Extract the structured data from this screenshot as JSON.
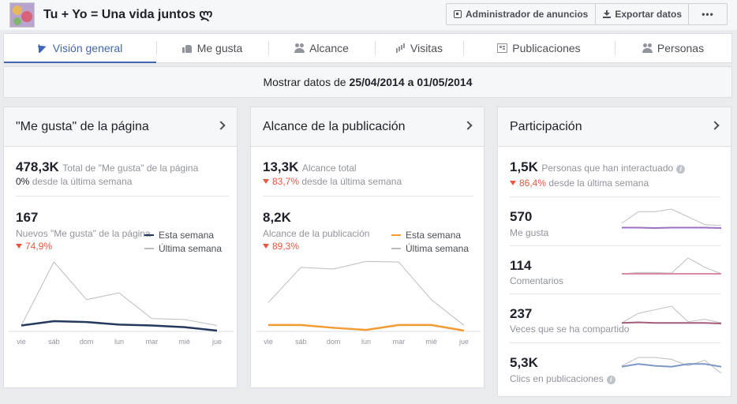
{
  "page": {
    "title": "Tu + Yo = Una vida juntos ლ"
  },
  "toolbar": {
    "ads_manager": "Administrador de anuncios",
    "export": "Exportar datos",
    "more": "•••"
  },
  "tabs": [
    {
      "label": "Visión general",
      "icon": "flag-icon"
    },
    {
      "label": "Me gusta",
      "icon": "thumbs-up-icon"
    },
    {
      "label": "Alcance",
      "icon": "people-icon"
    },
    {
      "label": "Visitas",
      "icon": "bar-chart-icon"
    },
    {
      "label": "Publicaciones",
      "icon": "posts-icon"
    },
    {
      "label": "Personas",
      "icon": "people-icon"
    }
  ],
  "daterange": {
    "prefix": "Mostrar datos de",
    "start": "25/04/2014",
    "connector": "a",
    "end": "01/05/2014"
  },
  "likes_card": {
    "title": "\"Me gusta\" de la página",
    "total": {
      "value": "478,3K",
      "label": "Total de \"Me gusta\" de la página",
      "change": "0%",
      "change_label": "desde la última semana"
    },
    "new": {
      "value": "167",
      "label": "Nuevos \"Me gusta\" de la página",
      "change": "74,9%"
    }
  },
  "reach_card": {
    "title": "Alcance de la publicación",
    "total": {
      "value": "13,3K",
      "label": "Alcance total",
      "change": "83,7%",
      "change_label": "desde la última semana"
    },
    "post": {
      "value": "8,2K",
      "label": "Alcance de la publicación",
      "change": "89,3%"
    }
  },
  "engagement_card": {
    "title": "Participación",
    "total": {
      "value": "1,5K",
      "label": "Personas que han interactuado",
      "change": "86,4%",
      "change_label": "desde la última semana"
    },
    "rows": [
      {
        "value": "570",
        "label": "Me gusta"
      },
      {
        "value": "114",
        "label": "Comentarios"
      },
      {
        "value": "237",
        "label": "Veces que se ha compartido"
      },
      {
        "value": "5,3K",
        "label": "Clics en publicaciones"
      }
    ]
  },
  "legend": {
    "this_week": "Esta semana",
    "last_week": "Última semana"
  },
  "colors": {
    "accent": "#4267b2",
    "likes_this_week": "#23395d",
    "reach_this_week": "#f29c33",
    "last_week": "#bdbdbd",
    "decline": "#e9573f"
  },
  "chart_data": [
    {
      "type": "line",
      "categories": [
        "vie",
        "sáb",
        "dom",
        "lun",
        "mar",
        "mié",
        "jue"
      ],
      "series": [
        {
          "name": "Esta semana",
          "values": [
            12,
            22,
            20,
            14,
            12,
            8,
            0
          ]
        },
        {
          "name": "Última semana",
          "values": [
            12,
            160,
            72,
            88,
            28,
            26,
            12
          ]
        }
      ],
      "ylim": [
        0,
        180
      ]
    },
    {
      "type": "line",
      "categories": [
        "vie",
        "sáb",
        "dom",
        "lun",
        "mar",
        "mié",
        "jue"
      ],
      "series": [
        {
          "name": "Esta semana",
          "values": [
            160,
            160,
            80,
            20,
            160,
            160,
            0
          ]
        },
        {
          "name": "Última semana",
          "values": [
            800,
            1800,
            1750,
            1970,
            1950,
            880,
            150
          ]
        }
      ],
      "ylim": [
        0,
        2200
      ]
    },
    {
      "type": "line",
      "title": "Me gusta",
      "categories": [
        "vie",
        "sáb",
        "dom",
        "lun",
        "mar",
        "mié",
        "jue"
      ],
      "series": [
        {
          "values": [
            85,
            85,
            84,
            85,
            85,
            85,
            84
          ]
        },
        {
          "values": [
            95,
            122,
            122,
            128,
            110,
            92,
            90
          ]
        }
      ]
    },
    {
      "type": "line",
      "title": "Comentarios",
      "categories": [
        "vie",
        "sáb",
        "dom",
        "lun",
        "mar",
        "mié",
        "jue"
      ],
      "series": [
        {
          "values": [
            16,
            16,
            16,
            16,
            16,
            16,
            16
          ]
        },
        {
          "values": [
            16,
            18,
            18,
            17,
            40,
            26,
            16
          ]
        }
      ]
    },
    {
      "type": "line",
      "title": "Veces que se ha compartido",
      "categories": [
        "vie",
        "sáb",
        "dom",
        "lun",
        "mar",
        "mié",
        "jue"
      ],
      "series": [
        {
          "values": [
            34,
            35,
            34,
            34,
            34,
            34,
            33
          ]
        },
        {
          "values": [
            34,
            50,
            56,
            62,
            36,
            40,
            34
          ]
        }
      ]
    },
    {
      "type": "line",
      "title": "Clics en publicaciones",
      "categories": [
        "vie",
        "sáb",
        "dom",
        "lun",
        "mar",
        "mié",
        "jue"
      ],
      "series": [
        {
          "values": [
            700,
            760,
            720,
            700,
            760,
            760,
            700
          ]
        },
        {
          "values": [
            720,
            900,
            900,
            860,
            720,
            840,
            560
          ]
        }
      ]
    }
  ]
}
